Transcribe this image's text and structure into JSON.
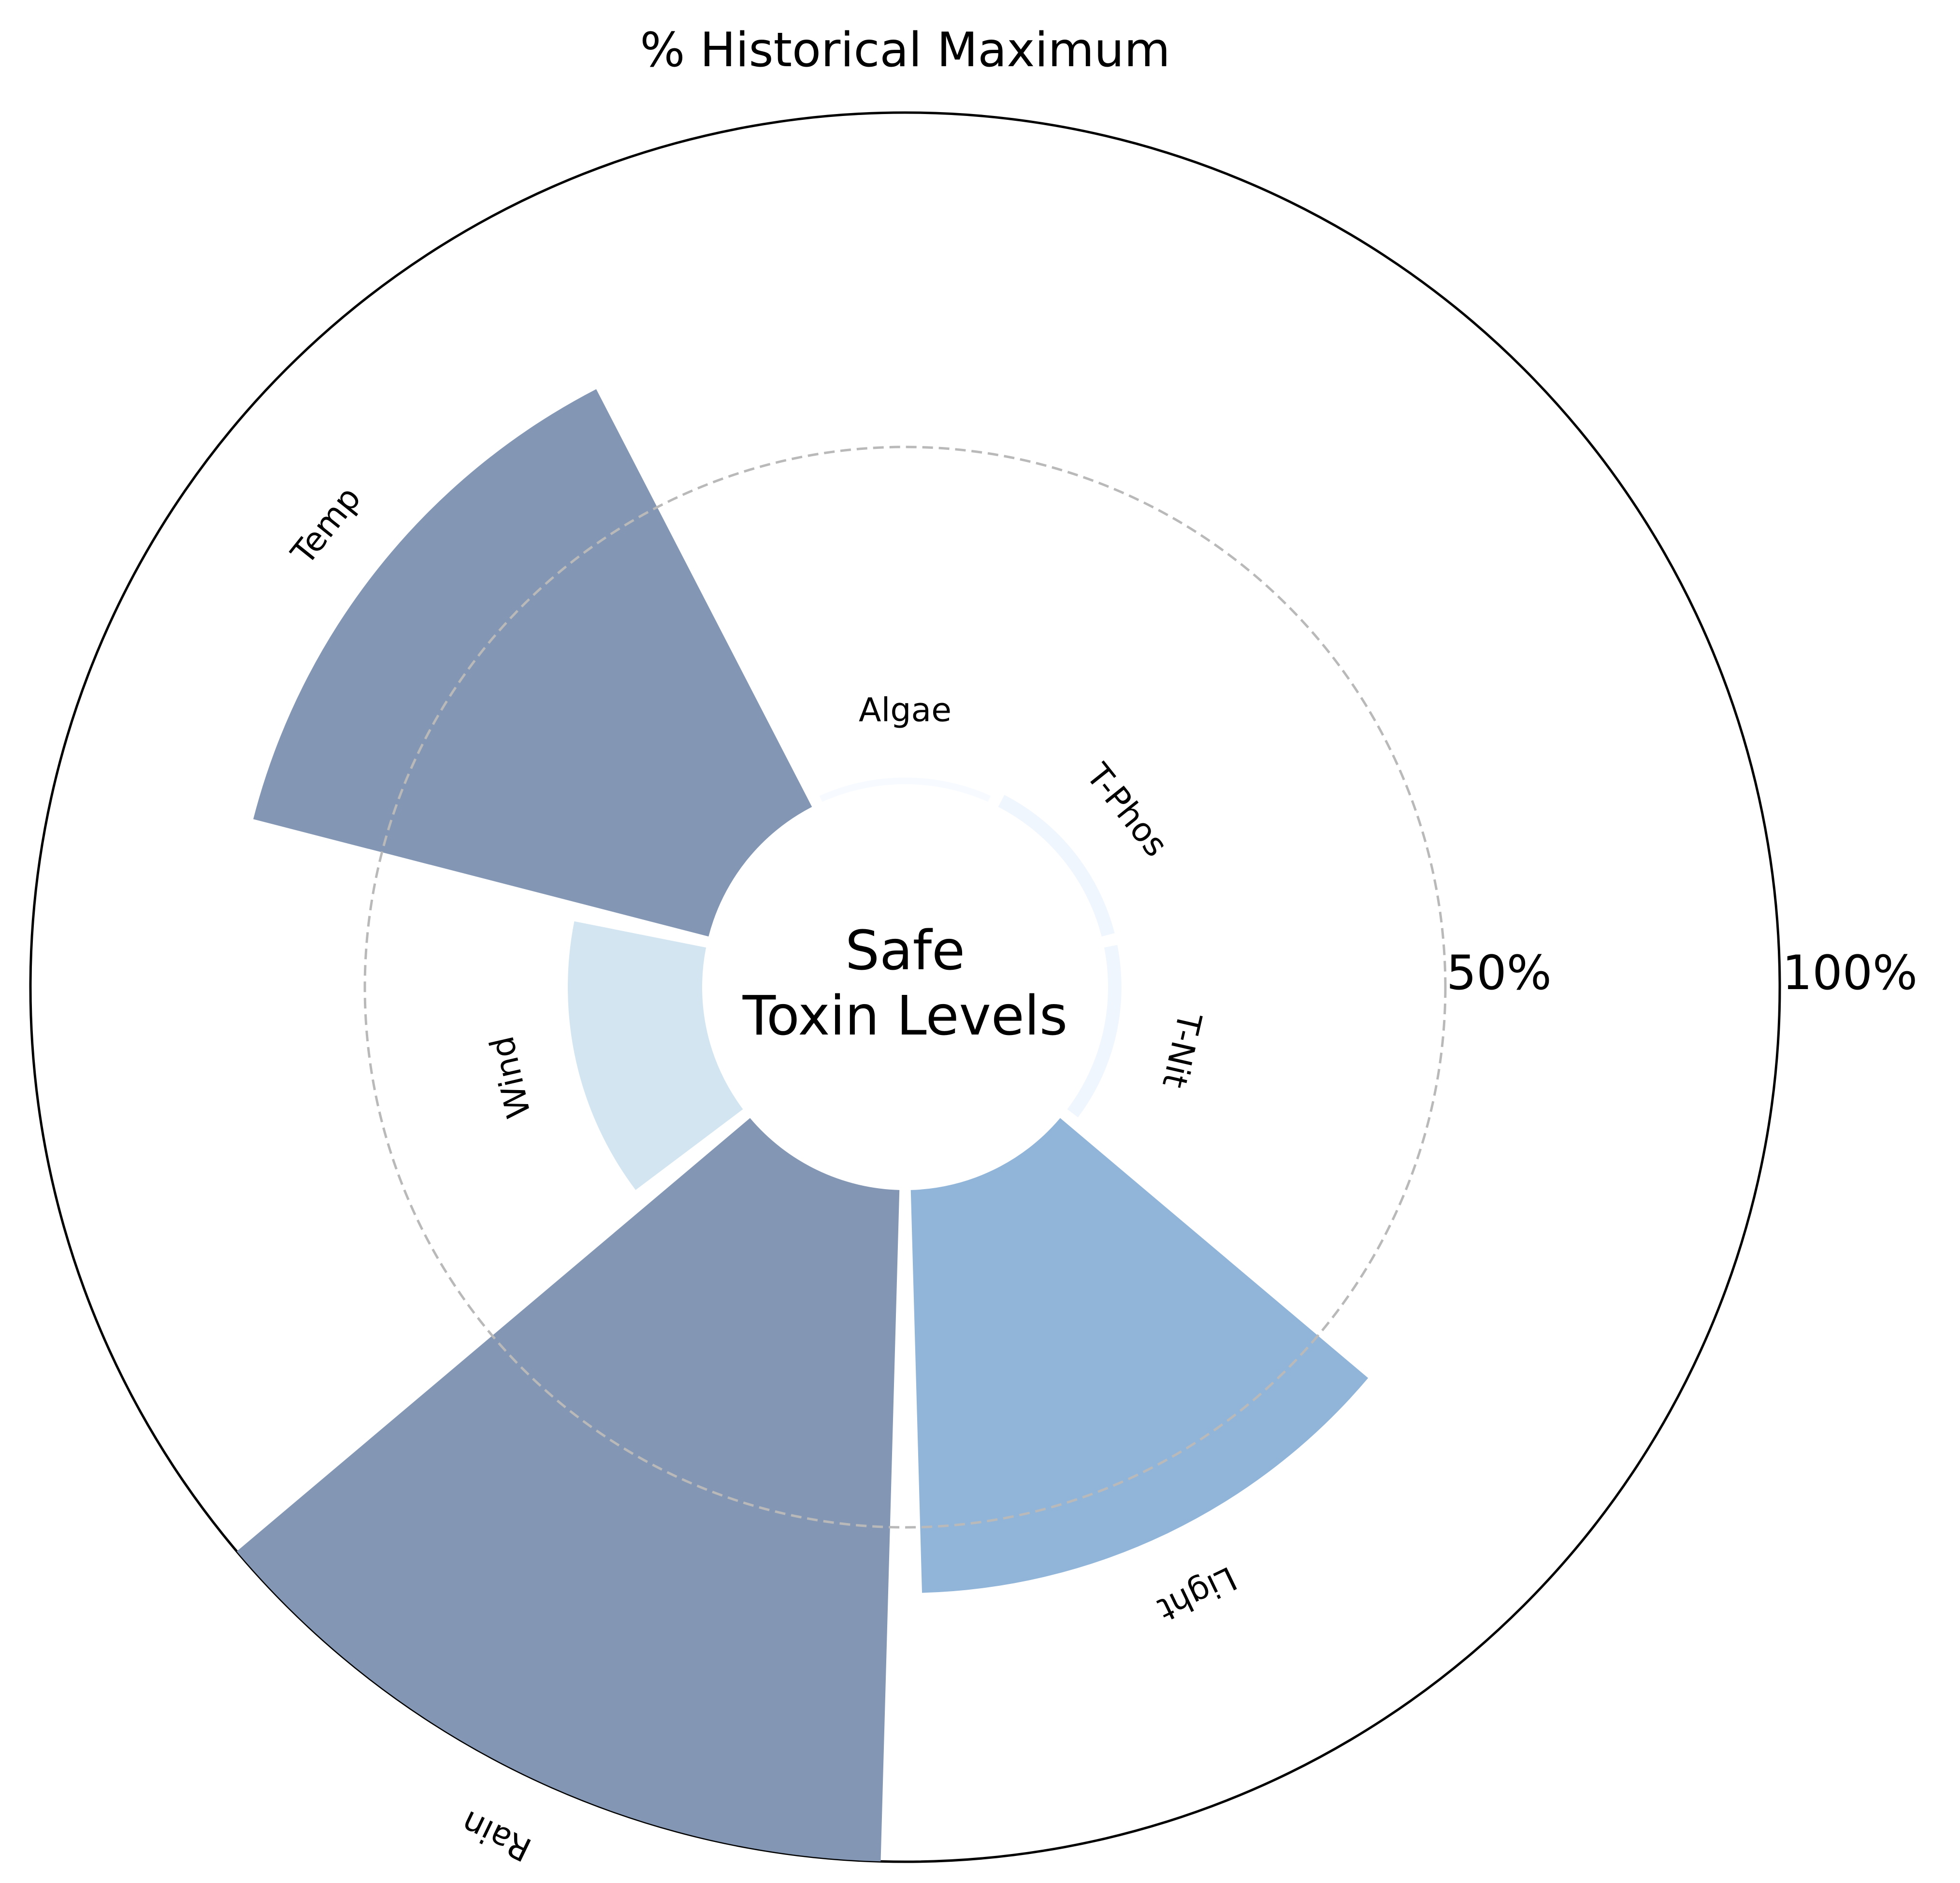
{
  "chart_data": {
    "type": "radial-bar",
    "title": "% Historical Maximum",
    "center_label": [
      "Safe",
      "Toxin Levels"
    ],
    "categories": [
      "Algae",
      "T-Phos",
      "T-Nit",
      "Light",
      "Rain",
      "Wind",
      "Temp"
    ],
    "values": [
      1,
      2,
      2,
      60,
      100,
      20,
      70
    ],
    "colors": [
      "#f7fbff",
      "#eff6fd",
      "#eff6fd",
      "#91b5d9",
      "#8396b3",
      "#d2e5f1",
      "#8396b3"
    ],
    "radial_ticks": [
      {
        "value": 50,
        "label": "50%"
      },
      {
        "value": 100,
        "label": "100%"
      }
    ],
    "rlim": [
      0,
      100
    ],
    "direction": "clockwise",
    "start": "top",
    "grid": "dashed circle at 50%"
  }
}
